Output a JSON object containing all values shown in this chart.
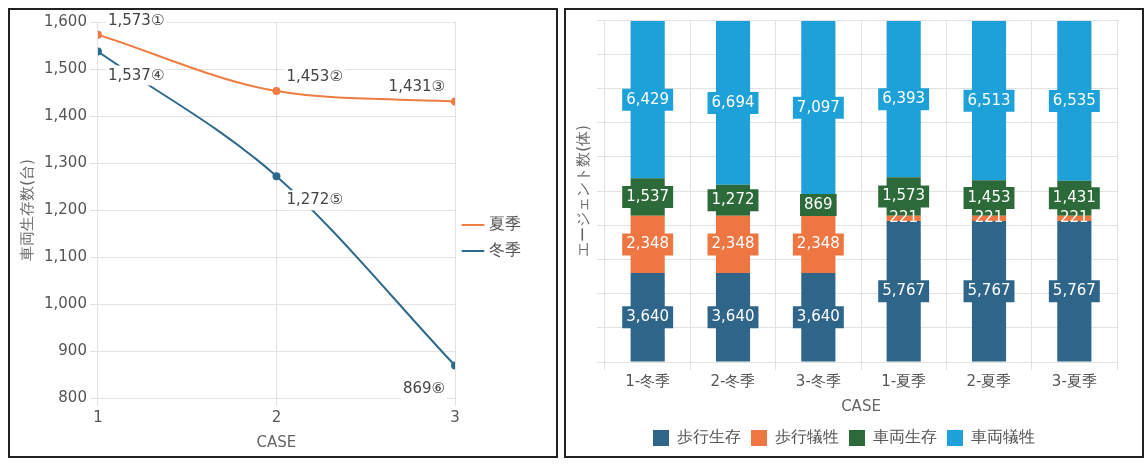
{
  "chart_data": [
    {
      "type": "line",
      "xlabel": "CASE",
      "ylabel": "車両生存数(台)",
      "x": [
        1,
        2,
        3
      ],
      "xlim": [
        1,
        3
      ],
      "xticks": [
        1,
        2,
        3
      ],
      "ylim": [
        800,
        1600
      ],
      "yticks": [
        800,
        900,
        {
          "value": 1000,
          "label": "1,000"
        },
        {
          "value": 1100,
          "label": "1,100"
        },
        {
          "value": 1200,
          "label": "1,200"
        },
        {
          "value": 1300,
          "label": "1,300"
        },
        {
          "value": 1400,
          "label": "1,400"
        },
        {
          "value": 1500,
          "label": "1,500"
        },
        {
          "value": 1600,
          "label": "1,600"
        }
      ],
      "series": [
        {
          "name": "夏季",
          "color": "#ee7d42",
          "values": [
            1573,
            1453,
            1431
          ],
          "value_labels": [
            "1,573①",
            "1,453②",
            "1,431③"
          ]
        },
        {
          "name": "冬季",
          "color": "#2e6a8c",
          "values": [
            1537,
            1272,
            869
          ],
          "value_labels": [
            "1,537④",
            "1,272⑤",
            "869⑥"
          ]
        }
      ],
      "marker": "circle",
      "grid": true,
      "legend": "right"
    },
    {
      "type": "bar",
      "stacked": true,
      "xlabel": "CASE",
      "ylabel": "エージェント数(体)",
      "categories": [
        "1-冬季",
        "2-冬季",
        "3-冬季",
        "1-夏季",
        "2-夏季",
        "3-夏季"
      ],
      "ylim": [
        0,
        14000
      ],
      "yticks": [
        {
          "value": 0,
          "label": null
        },
        {
          "value": 1400,
          "label": null
        },
        {
          "value": 2800,
          "label": null
        },
        {
          "value": 4200,
          "label": null
        },
        {
          "value": 5600,
          "label": null
        },
        {
          "value": 7000,
          "label": null
        },
        {
          "value": 8400,
          "label": null
        },
        {
          "value": 9800,
          "label": null
        },
        {
          "value": 11200,
          "label": null
        },
        {
          "value": 12600,
          "label": null
        },
        {
          "value": 14000,
          "label": null
        }
      ],
      "series": [
        {
          "name": "歩行生存",
          "color": "#2e6588",
          "values": [
            3640,
            3640,
            3640,
            5767,
            5767,
            5767
          ],
          "value_labels": [
            "3,640",
            "3,640",
            "3,640",
            "5,767",
            "5,767",
            "5,767"
          ]
        },
        {
          "name": "歩行犠牲",
          "color": "#ee7642",
          "values": [
            2348,
            2348,
            2348,
            221,
            221,
            221
          ],
          "value_labels": [
            "2,348",
            "2,348",
            "2,348",
            "221",
            "221",
            "221"
          ]
        },
        {
          "name": "車両生存",
          "color": "#2d6a3a",
          "values": [
            1537,
            1272,
            869,
            1573,
            1453,
            1431
          ],
          "value_labels": [
            "1,537",
            "1,272",
            "869",
            "1,573",
            "1,453",
            "1,431"
          ]
        },
        {
          "name": "車両犠牲",
          "color": "#1da1d8",
          "values": [
            6429,
            6694,
            7097,
            6393,
            6513,
            6535
          ],
          "value_labels": [
            "6,429",
            "6,694",
            "7,097",
            "6,393",
            "6,513",
            "6,535"
          ]
        }
      ],
      "grid": true,
      "legend": "bottom",
      "tick_labels": "x"
    }
  ]
}
